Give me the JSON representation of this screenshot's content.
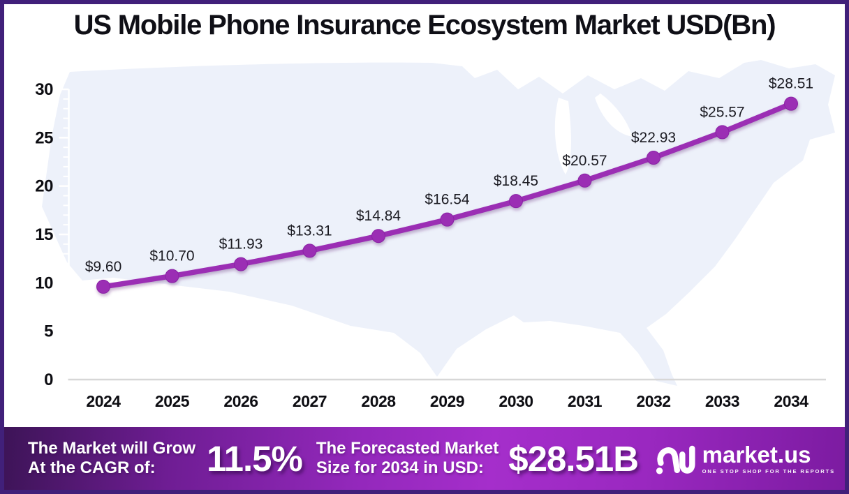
{
  "title": "US Mobile Phone Insurance Ecosystem Market USD(Bn)",
  "chart_data": {
    "type": "line",
    "title": "US Mobile Phone Insurance Ecosystem Market USD(Bn)",
    "categories": [
      "2024",
      "2025",
      "2026",
      "2027",
      "2028",
      "2029",
      "2030",
      "2031",
      "2032",
      "2033",
      "2034"
    ],
    "series": [
      {
        "name": "US Mobile Phone Insurance Ecosystem Market (USD Bn)",
        "values": [
          9.6,
          10.7,
          11.93,
          13.31,
          14.84,
          16.54,
          18.45,
          20.57,
          22.93,
          25.57,
          28.51
        ]
      }
    ],
    "point_labels": [
      "$9.60",
      "$10.70",
      "$11.93",
      "$13.31",
      "$14.84",
      "$16.54",
      "$18.45",
      "$20.57",
      "$22.93",
      "$25.57",
      "$28.51"
    ],
    "xlabel": "",
    "ylabel": "",
    "ylim": [
      0,
      30
    ],
    "yticks": [
      0,
      5,
      10,
      15,
      20,
      25,
      30
    ],
    "minor_tick_step": 1,
    "grid": false,
    "legend_position": "none",
    "line_color": "#9b2fb4",
    "marker_color": "#9b2fb4",
    "background_shape": "us-map-silhouette"
  },
  "banner": {
    "cagr_label_line1": "The Market will Grow",
    "cagr_label_line2": "At the CAGR of:",
    "cagr_value": "11.5%",
    "forecast_label_line1": "The Forecasted Market",
    "forecast_label_line2": "Size for 2034 in USD:",
    "forecast_value": "$28.51B",
    "logo_icon": "marketus-wave-icon",
    "logo_text": "market.us",
    "logo_tagline": "ONE STOP SHOP FOR THE REPORTS"
  },
  "colors": {
    "page_border": "#41207a",
    "title_text": "#0f0f16",
    "line": "#9b2fb4",
    "map_fill": "#edf1fa",
    "x_axis_line": "#d7d7d7",
    "y_axis_line": "#ffffff",
    "axis_label_text": "#0d0d12",
    "banner_gradient_left": "#3d1457",
    "banner_gradient_mid": "#a52ecb",
    "banner_gradient_right": "#7c1ba1",
    "banner_text": "#ffffff"
  }
}
